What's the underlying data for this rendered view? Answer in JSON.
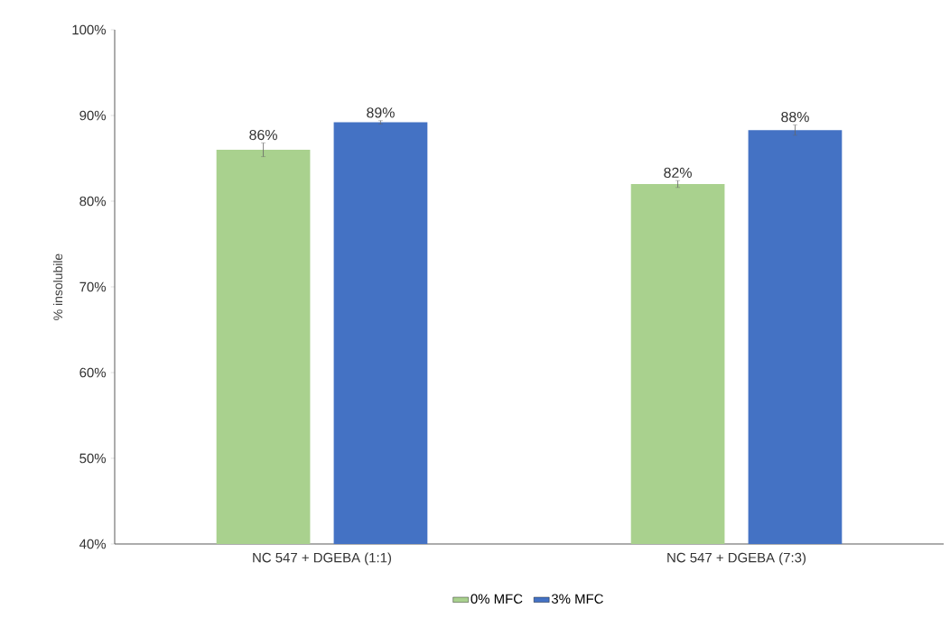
{
  "chart_data": {
    "type": "bar",
    "ylabel": "% insolubile",
    "categories": [
      "NC 547 + DGEBA (1:1)",
      "NC 547 + DGEBA (7:3)"
    ],
    "series": [
      {
        "name": "0% MFC",
        "color": "#a9d18e",
        "values": [
          86.0,
          82.0
        ],
        "errors": [
          0.8,
          0.4
        ],
        "value_labels": [
          "86%",
          "82%"
        ]
      },
      {
        "name": "3% MFC",
        "color": "#4472c4",
        "values": [
          89.2,
          88.3
        ],
        "errors": [
          0.2,
          0.6
        ],
        "value_labels": [
          "89%",
          "88%"
        ]
      }
    ],
    "ylim": [
      40,
      100
    ],
    "yticks": [
      {
        "value": 40,
        "label": "40%"
      },
      {
        "value": 50,
        "label": "50%"
      },
      {
        "value": 60,
        "label": "60%"
      },
      {
        "value": 70,
        "label": "70%"
      },
      {
        "value": 80,
        "label": "80%"
      },
      {
        "value": 90,
        "label": "90%"
      },
      {
        "value": 100,
        "label": "100%"
      }
    ],
    "legend": "bottom",
    "grid": false
  }
}
